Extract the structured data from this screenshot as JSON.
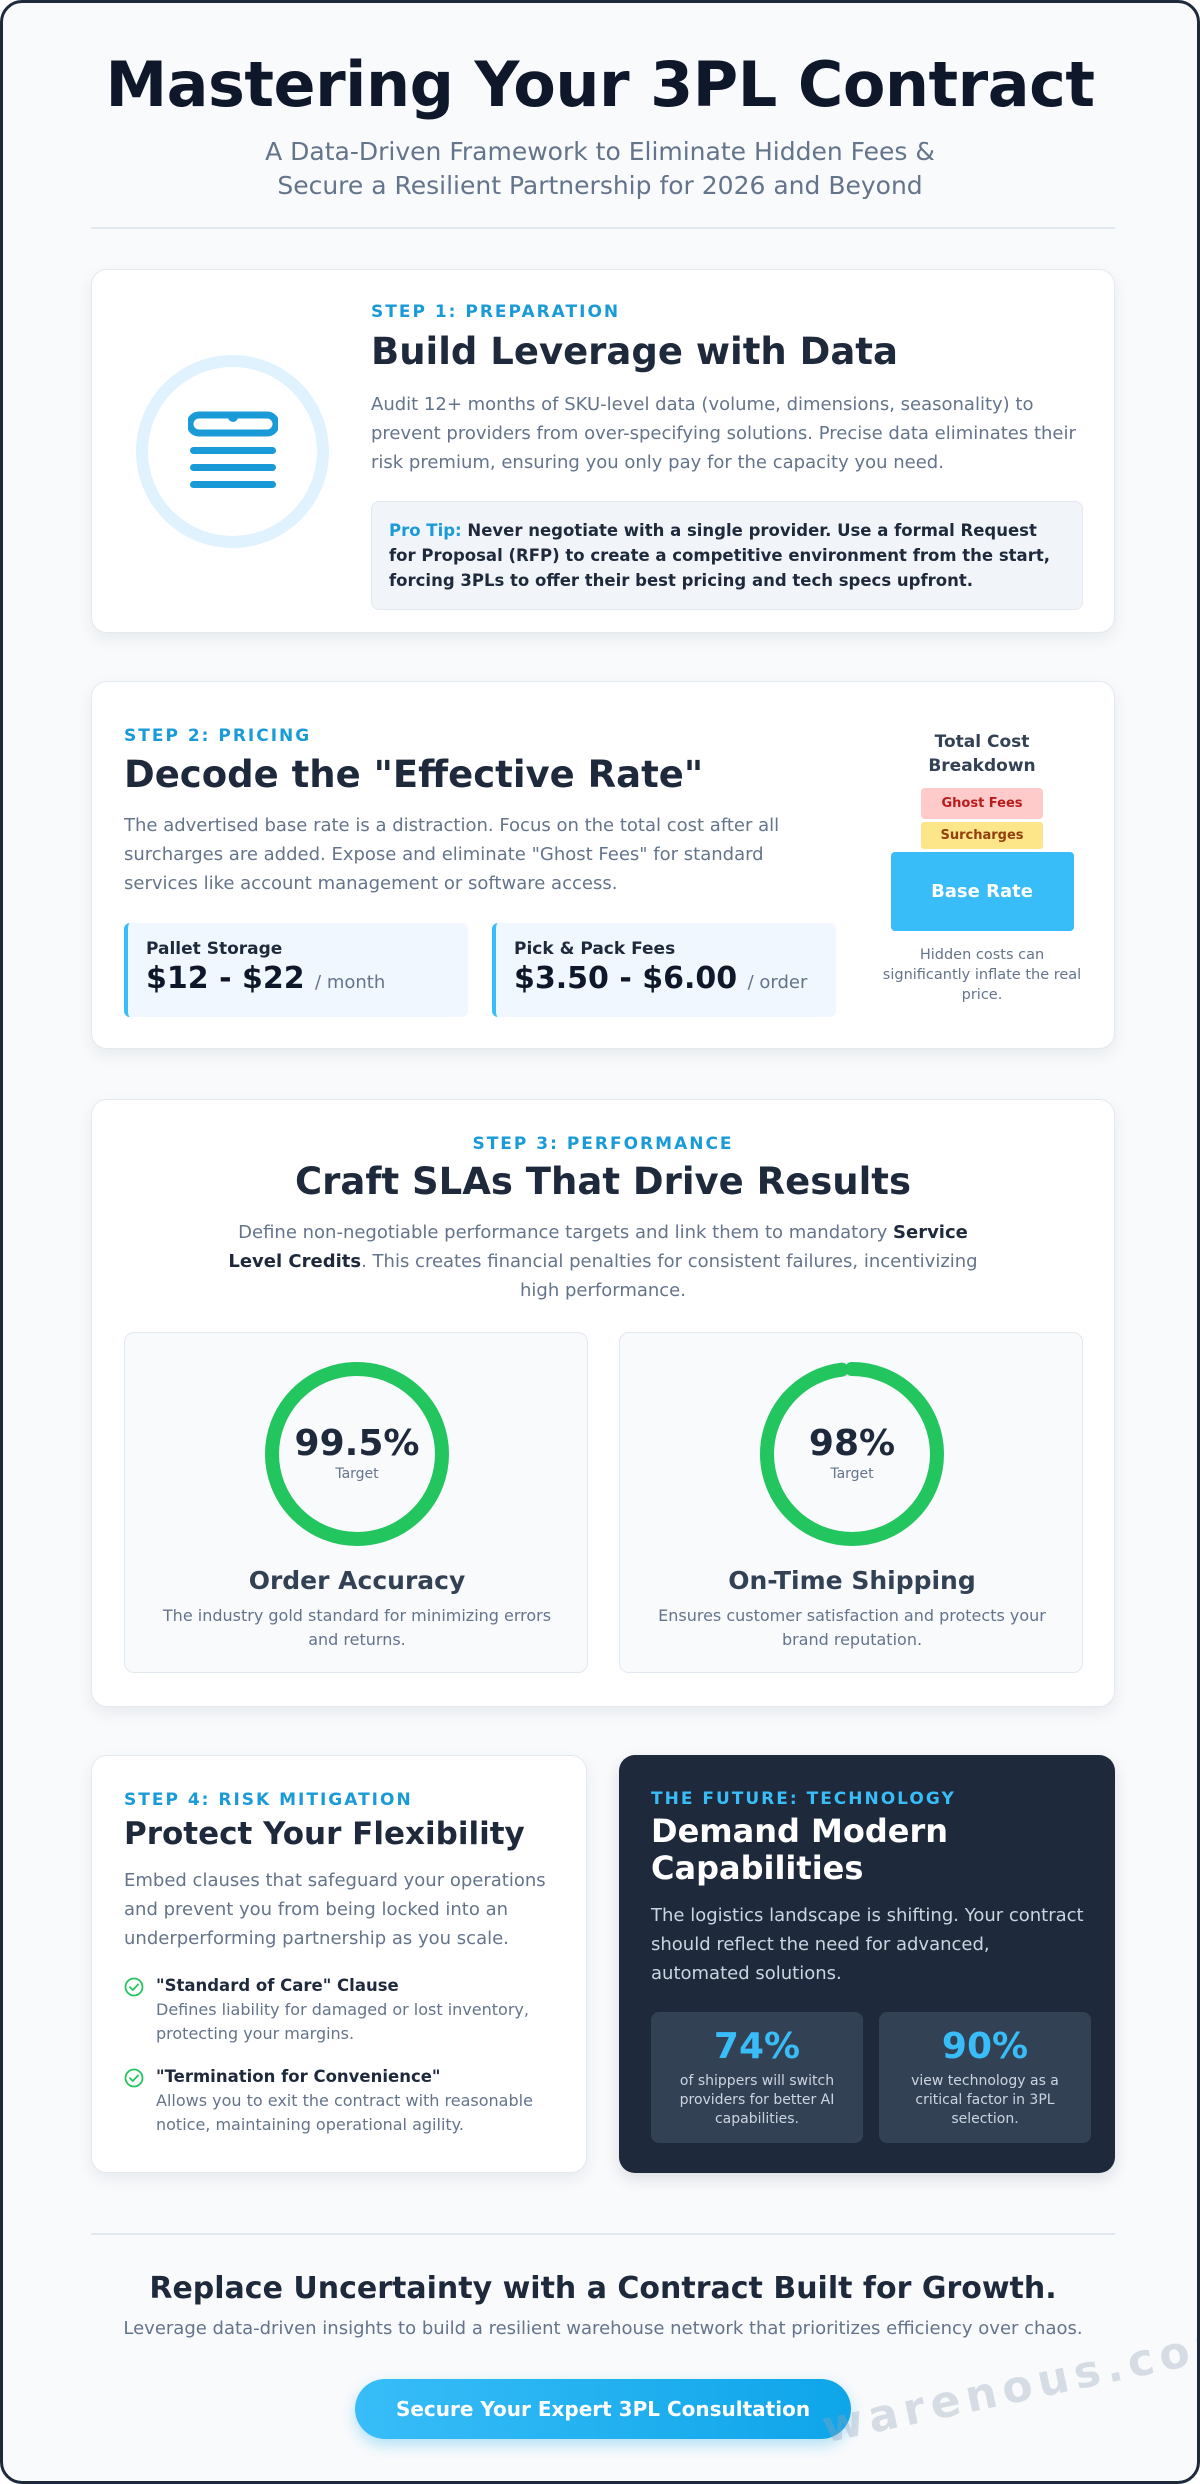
{
  "header": {
    "title": "Mastering Your 3PL Contract",
    "subtitle": "A Data-Driven Framework to Eliminate Hidden Fees & Secure a Resilient Partnership for 2026 and Beyond"
  },
  "step1": {
    "eyebrow": "STEP 1: PREPARATION",
    "title": "Build Leverage with Data",
    "body": "Audit 12+ months of SKU-level data (volume, dimensions, seasonality) to prevent providers from over-specifying solutions. Precise data eliminates their risk premium, ensuring you only pay for the capacity you need.",
    "tip_label": "Pro Tip:",
    "tip_text": "Never negotiate with a single provider. Use a formal Request for Proposal (RFP) to create a competitive environment from the start, forcing 3PLs to offer their best pricing and tech specs upfront.",
    "icon": "document-list-icon"
  },
  "step2": {
    "eyebrow": "STEP 2: PRICING",
    "title": "Decode the \"Effective Rate\"",
    "body": "The advertised base rate is a distraction. Focus on the total cost after all surcharges are added. Expose and eliminate \"Ghost Fees\" for standard services like account management or software access.",
    "prices": [
      {
        "label": "Pallet Storage",
        "value": "$12 - $22",
        "unit": "/ month"
      },
      {
        "label": "Pick & Pack Fees",
        "value": "$3.50 - $6.00",
        "unit": "/ order"
      }
    ],
    "breakdown": {
      "title": "Total Cost Breakdown",
      "ghost": "Ghost Fees",
      "surcharges": "Surcharges",
      "base": "Base Rate",
      "note": "Hidden costs can significantly inflate the real price."
    }
  },
  "step3": {
    "eyebrow": "STEP 3: PERFORMANCE",
    "title": "Craft SLAs That Drive Results",
    "body_pre": "Define non-negotiable performance targets and link them to mandatory ",
    "body_bold": "Service Level Credits",
    "body_post": ". This creates financial penalties for consistent failures, incentivizing high performance.",
    "metrics": [
      {
        "value": "99.5%",
        "fill": 0.995,
        "label": "Target",
        "title": "Order Accuracy",
        "desc": "The industry gold standard for minimizing errors and returns."
      },
      {
        "value": "98%",
        "fill": 0.98,
        "label": "Target",
        "title": "On-Time Shipping",
        "desc": "Ensures customer satisfaction and protects your brand reputation."
      }
    ],
    "ring_color": "#22c55e"
  },
  "step4": {
    "eyebrow": "STEP 4: RISK MITIGATION",
    "title": "Protect Your Flexibility",
    "body": "Embed clauses that safeguard your operations and prevent you from being locked into an underperforming partnership as you scale.",
    "items": [
      {
        "title": "\"Standard of Care\" Clause",
        "desc": "Defines liability for damaged or lost inventory, protecting your margins."
      },
      {
        "title": "\"Termination for Convenience\"",
        "desc": "Allows you to exit the contract with reasonable notice, maintaining operational agility."
      }
    ]
  },
  "future": {
    "eyebrow": "THE FUTURE: TECHNOLOGY",
    "title": "Demand Modern Capabilities",
    "body": "The logistics landscape is shifting. Your contract should reflect the need for advanced, automated solutions.",
    "stats": [
      {
        "value": "74%",
        "desc": "of shippers will switch providers for better AI capabilities."
      },
      {
        "value": "90%",
        "desc": "view technology as a critical factor in 3PL selection."
      }
    ]
  },
  "footer": {
    "title": "Replace Uncertainty with a Contract Built for Growth.",
    "subtitle": "Leverage data-driven insights to build a resilient warehouse network that prioritizes efficiency over chaos.",
    "cta": "Secure Your Expert 3PL Consultation"
  },
  "watermark": "warenous.com",
  "colors": {
    "accent": "#1a9bd7",
    "sky": "#38bdf8",
    "success": "#22c55e",
    "dark": "#1e293b"
  }
}
